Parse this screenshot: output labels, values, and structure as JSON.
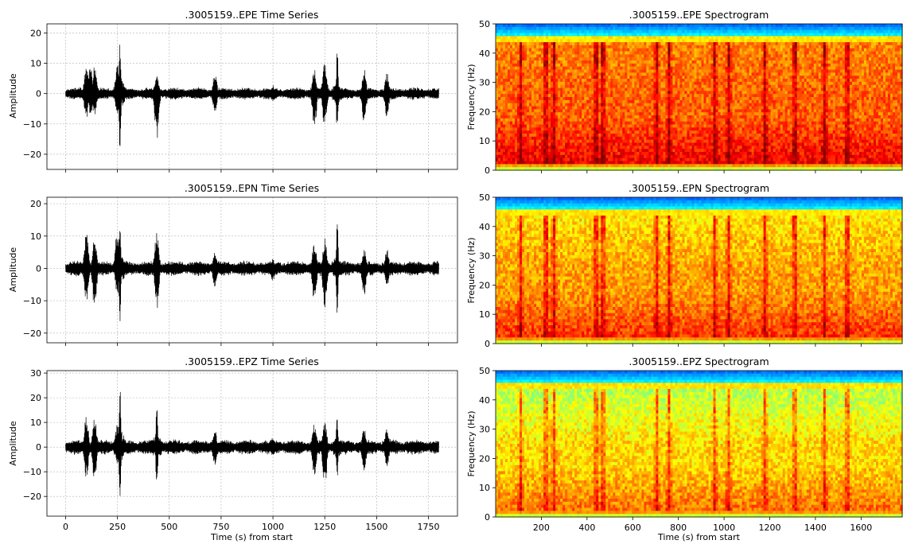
{
  "chart_data": [
    {
      "type": "line",
      "title": ".3005159..EPE Time Series",
      "xlabel": "",
      "ylabel": "Amplitude",
      "xlim": [
        -90,
        1890
      ],
      "ylim": [
        -25,
        23
      ],
      "xticks": [
        0,
        250,
        500,
        750,
        1000,
        1250,
        1500,
        1750
      ],
      "yticks": [
        -20,
        -10,
        0,
        10,
        20
      ],
      "grid": true,
      "series": [
        {
          "color": "#000000",
          "x_range": [
            0,
            1800
          ],
          "baseline_amplitude": 1.2,
          "bursts": [
            {
              "x": 100,
              "peak": 11,
              "trough": -9
            },
            {
              "x": 120,
              "peak": 9,
              "trough": -7
            },
            {
              "x": 140,
              "peak": 10,
              "trough": -8
            },
            {
              "x": 250,
              "peak": 11,
              "trough": -8
            },
            {
              "x": 262,
              "peak": 20,
              "trough": -23
            },
            {
              "x": 440,
              "peak": 7,
              "trough": -16
            },
            {
              "x": 720,
              "peak": 7,
              "trough": -7
            },
            {
              "x": 1000,
              "peak": 3,
              "trough": -3
            },
            {
              "x": 1200,
              "peak": 9,
              "trough": -12
            },
            {
              "x": 1250,
              "peak": 11,
              "trough": -12
            },
            {
              "x": 1310,
              "peak": 15,
              "trough": -14
            },
            {
              "x": 1440,
              "peak": 8,
              "trough": -10
            },
            {
              "x": 1550,
              "peak": 7,
              "trough": -8
            }
          ]
        }
      ]
    },
    {
      "type": "heatmap",
      "title": ".3005159..EPE Spectrogram",
      "xlabel": "",
      "ylabel": "Frequency (Hz)",
      "xlim": [
        0,
        1780
      ],
      "ylim": [
        0,
        50
      ],
      "xticks": [
        200,
        400,
        600,
        800,
        1000,
        1200,
        1400,
        1600
      ],
      "yticks": [
        0,
        10,
        20,
        30,
        40,
        50
      ],
      "colormap": "jet",
      "events_s": [
        110,
        220,
        255,
        440,
        470,
        705,
        760,
        960,
        1020,
        1180,
        1310,
        1440,
        1540
      ]
    },
    {
      "type": "line",
      "title": ".3005159..EPN Time Series",
      "xlabel": "",
      "ylabel": "Amplitude",
      "xlim": [
        -90,
        1890
      ],
      "ylim": [
        -23,
        22
      ],
      "xticks": [
        0,
        250,
        500,
        750,
        1000,
        1250,
        1500,
        1750
      ],
      "yticks": [
        -20,
        -10,
        0,
        10,
        20
      ],
      "grid": true,
      "series": [
        {
          "color": "#000000",
          "x_range": [
            0,
            1800
          ],
          "baseline_amplitude": 1.4,
          "bursts": [
            {
              "x": 100,
              "peak": 12,
              "trough": -11
            },
            {
              "x": 140,
              "peak": 10,
              "trough": -13
            },
            {
              "x": 250,
              "peak": 13,
              "trough": -9
            },
            {
              "x": 262,
              "peak": 19,
              "trough": -21
            },
            {
              "x": 440,
              "peak": 12,
              "trough": -13
            },
            {
              "x": 720,
              "peak": 5,
              "trough": -6
            },
            {
              "x": 1000,
              "peak": 3,
              "trough": -4
            },
            {
              "x": 1200,
              "peak": 9,
              "trough": -12
            },
            {
              "x": 1250,
              "peak": 10,
              "trough": -13
            },
            {
              "x": 1310,
              "peak": 17,
              "trough": -14
            },
            {
              "x": 1440,
              "peak": 6,
              "trough": -9
            },
            {
              "x": 1550,
              "peak": 6,
              "trough": -6
            }
          ]
        }
      ]
    },
    {
      "type": "heatmap",
      "title": ".3005159..EPN Spectrogram",
      "xlabel": "",
      "ylabel": "Frequency (Hz)",
      "xlim": [
        0,
        1780
      ],
      "ylim": [
        0,
        50
      ],
      "xticks": [
        200,
        400,
        600,
        800,
        1000,
        1200,
        1400,
        1600
      ],
      "yticks": [
        0,
        10,
        20,
        30,
        40,
        50
      ],
      "colormap": "jet",
      "events_s": [
        110,
        220,
        255,
        440,
        470,
        705,
        760,
        960,
        1020,
        1180,
        1310,
        1440,
        1540
      ]
    },
    {
      "type": "line",
      "title": ".3005159..EPZ Time Series",
      "xlabel": "Time (s) from start",
      "ylabel": "Amplitude",
      "xlim": [
        -90,
        1890
      ],
      "ylim": [
        -28,
        31
      ],
      "xticks": [
        0,
        250,
        500,
        750,
        1000,
        1250,
        1500,
        1750
      ],
      "yticks": [
        -20,
        -10,
        0,
        10,
        20,
        30
      ],
      "grid": true,
      "series": [
        {
          "color": "#000000",
          "x_range": [
            0,
            1800
          ],
          "baseline_amplitude": 1.8,
          "bursts": [
            {
              "x": 100,
              "peak": 13,
              "trough": -13
            },
            {
              "x": 140,
              "peak": 12,
              "trough": -14
            },
            {
              "x": 250,
              "peak": 10,
              "trough": -8
            },
            {
              "x": 262,
              "peak": 28,
              "trough": -25
            },
            {
              "x": 440,
              "peak": 20,
              "trough": -19
            },
            {
              "x": 720,
              "peak": 7,
              "trough": -8
            },
            {
              "x": 1000,
              "peak": 4,
              "trough": -4
            },
            {
              "x": 1200,
              "peak": 11,
              "trough": -12
            },
            {
              "x": 1250,
              "peak": 11,
              "trough": -17
            },
            {
              "x": 1310,
              "peak": 16,
              "trough": -16
            },
            {
              "x": 1440,
              "peak": 8,
              "trough": -10
            },
            {
              "x": 1550,
              "peak": 8,
              "trough": -8
            }
          ]
        }
      ]
    },
    {
      "type": "heatmap",
      "title": ".3005159..EPZ Spectrogram",
      "xlabel": "Time (s) from start",
      "ylabel": "Frequency (Hz)",
      "xlim": [
        0,
        1780
      ],
      "ylim": [
        0,
        50
      ],
      "xticks": [
        200,
        400,
        600,
        800,
        1000,
        1200,
        1400,
        1600
      ],
      "yticks": [
        0,
        10,
        20,
        30,
        40,
        50
      ],
      "colormap": "jet",
      "events_s": [
        110,
        220,
        255,
        440,
        470,
        705,
        760,
        960,
        1020,
        1180,
        1310,
        1440,
        1540
      ]
    }
  ]
}
